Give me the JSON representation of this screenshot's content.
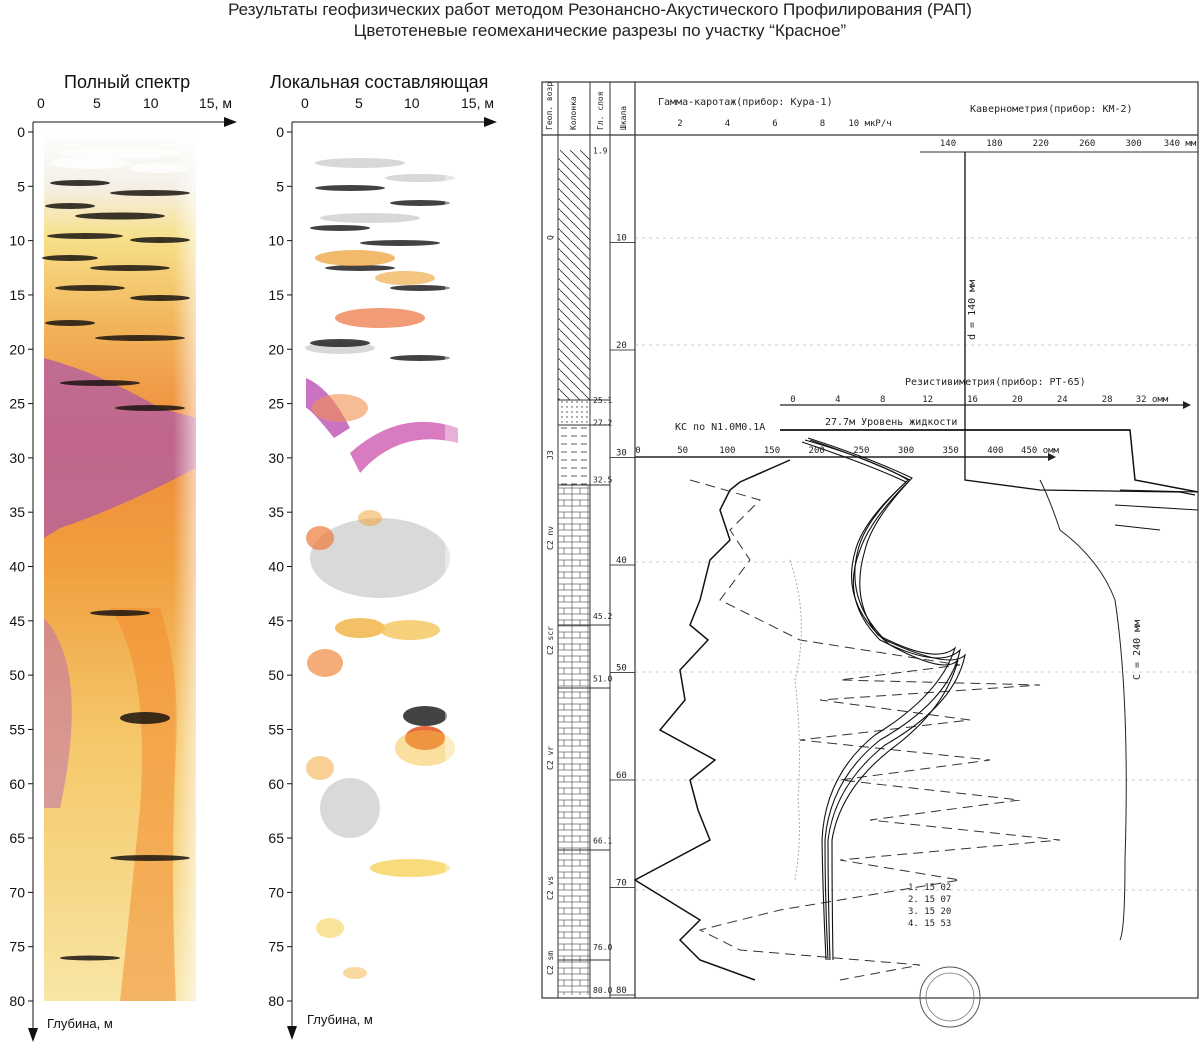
{
  "header": {
    "line1": "Результаты геофизических работ методом Резонансно-Акустического Профилирования (РАП)",
    "line2": "Цветотеневые геомеханические разрезы по участку “Красное”"
  },
  "panels": [
    {
      "title": "Полный спектр",
      "xlabel": "м",
      "ylabel": "Глубина, м"
    },
    {
      "title": "Локальная составляющая",
      "xlabel": "м",
      "ylabel": "Глубина, м"
    }
  ],
  "axes": {
    "x_ticks": [
      "0",
      "5",
      "10",
      "15, м"
    ],
    "y_ticks": [
      "0",
      "5",
      "10",
      "15",
      "20",
      "25",
      "30",
      "35",
      "40",
      "45",
      "50",
      "55",
      "60",
      "65",
      "70",
      "75",
      "80"
    ]
  },
  "log": {
    "columns": [
      "Геол. возр.",
      "Колонка",
      "Гл. слоя",
      "Шкала"
    ],
    "gamma_title": "Гамма-каротаж(прибор: Кура-1)",
    "gamma_ticks": [
      "2",
      "4",
      "6",
      "8",
      "10 мкР/ч"
    ],
    "cav_title": "Кавернометрия(прибор: КМ-2)",
    "cav_ticks": [
      "140",
      "180",
      "220",
      "260",
      "300",
      "340 мм"
    ],
    "res_title": "Резистивиметрия(прибор: PT-65)",
    "res_ticks": [
      "0",
      "4",
      "8",
      "12",
      "16",
      "20",
      "24",
      "28",
      "32 омм"
    ],
    "ks_title": "КС по N1.0M0.1A",
    "ks_ticks": [
      "0",
      "50",
      "100",
      "150",
      "200",
      "250",
      "300",
      "350",
      "400",
      "450 омм"
    ],
    "water_level": "27.7м Уровень жидкости",
    "layer_depths": [
      "1.9",
      "25.1",
      "27.2",
      "32.5",
      "45.2",
      "51.0",
      "66.1",
      "76.0",
      "80.0"
    ],
    "depth_scale": [
      "10",
      "20",
      "30",
      "40",
      "50",
      "60",
      "70",
      "80"
    ],
    "ages": [
      "Q",
      "J3",
      "C2 nv",
      "C2 scr",
      "C2 vr",
      "C2 vs",
      "C2 sm"
    ],
    "annot_d": "d = 140 мм",
    "annot_c": "C = 240 мм",
    "legend": [
      "1. 15 02",
      "2. 15 07",
      "3. 15 20",
      "4. 15 53"
    ]
  }
}
